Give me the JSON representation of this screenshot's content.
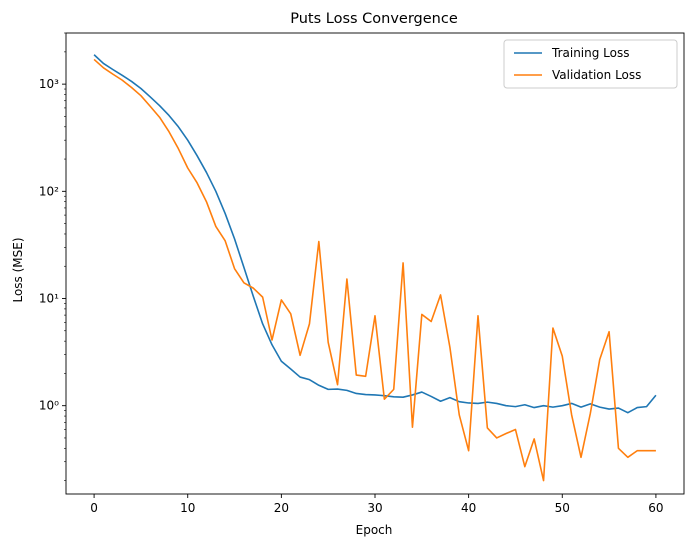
{
  "chart_data": {
    "type": "line",
    "title": "Puts Loss Convergence",
    "xlabel": "Epoch",
    "ylabel": "Loss (MSE)",
    "yscale": "log",
    "xlim": [
      -3,
      63
    ],
    "ylim": [
      0.15,
      3000
    ],
    "xticks": [
      0,
      10,
      20,
      30,
      40,
      50,
      60
    ],
    "yticks": [
      {
        "value": 1,
        "label": "10⁰"
      },
      {
        "value": 10,
        "label": "10¹"
      },
      {
        "value": 100,
        "label": "10²"
      },
      {
        "value": 1000,
        "label": "10³"
      }
    ],
    "legend_position": "top-right",
    "grid": false,
    "x": [
      0,
      1,
      2,
      3,
      4,
      5,
      6,
      7,
      8,
      9,
      10,
      11,
      12,
      13,
      14,
      15,
      16,
      17,
      18,
      19,
      20,
      21,
      22,
      23,
      24,
      25,
      26,
      27,
      28,
      29,
      30,
      31,
      32,
      33,
      34,
      35,
      36,
      37,
      38,
      39,
      40,
      41,
      42,
      43,
      44,
      45,
      46,
      47,
      48,
      49,
      50,
      51,
      52,
      53,
      54,
      55,
      56,
      57,
      58,
      59,
      60
    ],
    "series": [
      {
        "name": "Training Loss",
        "color": "#1f77b4",
        "values": [
          1880,
          1560,
          1370,
          1210,
          1060,
          910,
          760,
          630,
          510,
          400,
          300,
          215,
          150,
          100,
          62,
          36,
          19.5,
          10.5,
          5.8,
          3.7,
          2.6,
          2.2,
          1.85,
          1.75,
          1.55,
          1.42,
          1.43,
          1.39,
          1.3,
          1.27,
          1.26,
          1.24,
          1.21,
          1.2,
          1.26,
          1.34,
          1.22,
          1.1,
          1.19,
          1.09,
          1.06,
          1.05,
          1.08,
          1.05,
          1.0,
          0.98,
          1.02,
          0.96,
          1.0,
          0.97,
          1.0,
          1.05,
          0.97,
          1.04,
          0.97,
          0.93,
          0.95,
          0.86,
          0.96,
          0.98,
          1.25
        ]
      },
      {
        "name": "Validation Loss",
        "color": "#ff7f0e",
        "values": [
          1700,
          1420,
          1240,
          1090,
          930,
          780,
          620,
          490,
          360,
          250,
          165,
          120,
          80,
          47,
          34.5,
          19,
          14,
          12.5,
          10.3,
          4.1,
          9.7,
          7.2,
          2.95,
          5.8,
          34,
          3.9,
          1.57,
          15.2,
          1.93,
          1.88,
          6.9,
          1.15,
          1.42,
          21.5,
          0.63,
          7.1,
          6.1,
          10.8,
          3.5,
          0.82,
          0.38,
          6.9,
          0.62,
          0.5,
          0.55,
          0.6,
          0.27,
          0.49,
          0.2,
          5.3,
          2.9,
          0.82,
          0.33,
          0.85,
          2.7,
          4.9,
          0.4,
          0.33,
          0.38,
          0.38,
          0.38
        ]
      }
    ]
  }
}
